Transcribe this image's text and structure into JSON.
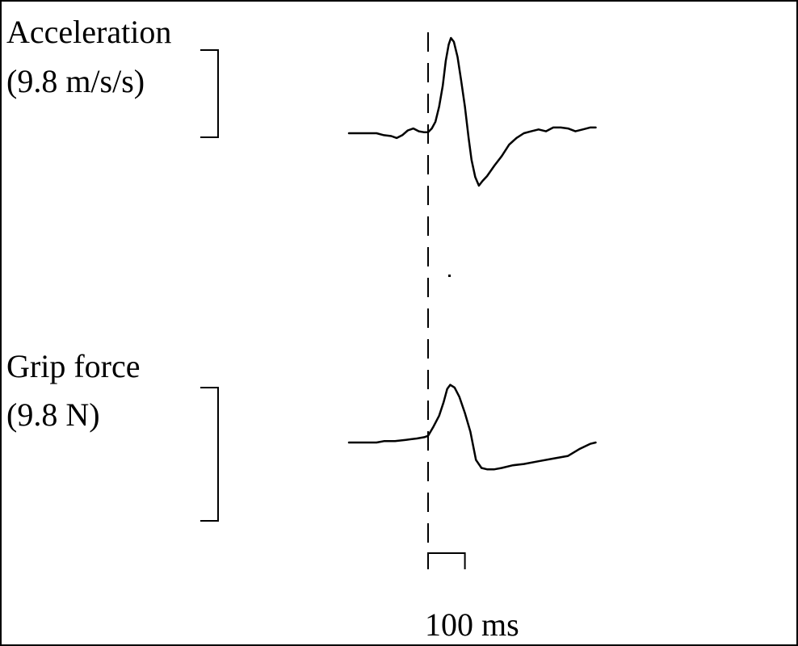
{
  "colors": {
    "ink": "#000000",
    "background": "#ffffff"
  },
  "chart_data": [
    {
      "type": "line",
      "name": "acceleration",
      "label_line1": "Acceleration",
      "label_line2": "(9.8 m/s/s)",
      "scale_bar_value": 1,
      "trace": [
        [
          -215,
          0.0
        ],
        [
          -175,
          0.0
        ],
        [
          -140,
          0.0
        ],
        [
          -120,
          -0.02
        ],
        [
          -100,
          -0.03
        ],
        [
          -85,
          -0.05
        ],
        [
          -70,
          -0.02
        ],
        [
          -55,
          0.03
        ],
        [
          -40,
          0.05
        ],
        [
          -25,
          0.02
        ],
        [
          -10,
          0.01
        ],
        [
          0,
          0.01
        ],
        [
          10,
          0.05
        ],
        [
          20,
          0.12
        ],
        [
          30,
          0.28
        ],
        [
          40,
          0.5
        ],
        [
          48,
          0.76
        ],
        [
          56,
          0.93
        ],
        [
          62,
          1.0
        ],
        [
          70,
          0.96
        ],
        [
          80,
          0.8
        ],
        [
          90,
          0.55
        ],
        [
          100,
          0.28
        ],
        [
          110,
          -0.05
        ],
        [
          118,
          -0.28
        ],
        [
          128,
          -0.46
        ],
        [
          138,
          -0.55
        ],
        [
          148,
          -0.5
        ],
        [
          160,
          -0.45
        ],
        [
          180,
          -0.34
        ],
        [
          200,
          -0.24
        ],
        [
          220,
          -0.12
        ],
        [
          240,
          -0.05
        ],
        [
          260,
          0.0
        ],
        [
          280,
          0.02
        ],
        [
          300,
          0.04
        ],
        [
          320,
          0.02
        ],
        [
          340,
          0.06
        ],
        [
          360,
          0.06
        ],
        [
          380,
          0.05
        ],
        [
          400,
          0.02
        ],
        [
          420,
          0.04
        ],
        [
          440,
          0.06
        ],
        [
          455,
          0.06
        ]
      ]
    },
    {
      "type": "line",
      "name": "grip-force",
      "label_line1": "Grip force",
      "label_line2": "(9.8 N)",
      "scale_bar_value": 1,
      "trace": [
        [
          -215,
          0.0
        ],
        [
          -140,
          0.0
        ],
        [
          -120,
          0.01
        ],
        [
          -90,
          0.01
        ],
        [
          -60,
          0.02
        ],
        [
          -30,
          0.03
        ],
        [
          -10,
          0.04
        ],
        [
          0,
          0.05
        ],
        [
          15,
          0.12
        ],
        [
          30,
          0.2
        ],
        [
          42,
          0.3
        ],
        [
          52,
          0.4
        ],
        [
          60,
          0.43
        ],
        [
          72,
          0.41
        ],
        [
          85,
          0.34
        ],
        [
          100,
          0.22
        ],
        [
          115,
          0.08
        ],
        [
          130,
          -0.13
        ],
        [
          145,
          -0.19
        ],
        [
          160,
          -0.2
        ],
        [
          180,
          -0.2
        ],
        [
          200,
          -0.19
        ],
        [
          230,
          -0.17
        ],
        [
          260,
          -0.16
        ],
        [
          300,
          -0.14
        ],
        [
          340,
          -0.12
        ],
        [
          380,
          -0.1
        ],
        [
          410,
          -0.05
        ],
        [
          440,
          -0.01
        ],
        [
          455,
          0.0
        ]
      ]
    }
  ],
  "time_marker": {
    "time_ms": 0
  },
  "time_scale": {
    "label": "100 ms",
    "duration_ms": 100
  }
}
